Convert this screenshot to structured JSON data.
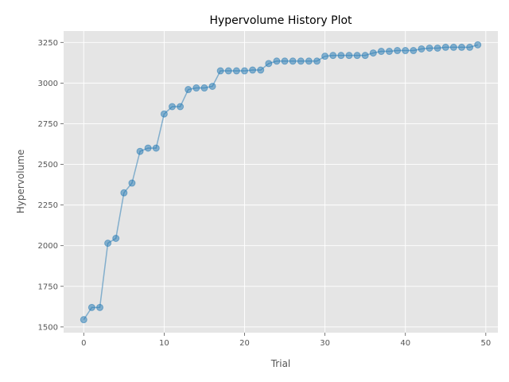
{
  "chart_data": {
    "type": "line",
    "title": "Hypervolume History Plot",
    "xlabel": "Trial",
    "ylabel": "Hypervolume",
    "xlim": [
      -2.5,
      51.5
    ],
    "ylim": [
      1465,
      3320
    ],
    "xticks": [
      0,
      10,
      20,
      30,
      40,
      50
    ],
    "yticks": [
      1500,
      1750,
      2000,
      2250,
      2500,
      2750,
      3000,
      3250
    ],
    "grid": true,
    "style": "ggplot",
    "colors": {
      "background": "#e5e5e5",
      "grid": "#ffffff",
      "line": "#1f77b4",
      "marker": "#1f77b4"
    },
    "series": [
      {
        "x": [
          0,
          1,
          2,
          3,
          4,
          5,
          6,
          7,
          8,
          9,
          10,
          11,
          12,
          13,
          14,
          15,
          16,
          17,
          18,
          19,
          20,
          21,
          22,
          23,
          24,
          25,
          26,
          27,
          28,
          29,
          30,
          31,
          32,
          33,
          34,
          35,
          36,
          37,
          38,
          39,
          40,
          41,
          42,
          43,
          44,
          45,
          46,
          47,
          48,
          49
        ],
        "values": [
          1545,
          1620,
          1620,
          2015,
          2045,
          2325,
          2385,
          2580,
          2600,
          2600,
          2810,
          2855,
          2855,
          2960,
          2970,
          2970,
          2980,
          3075,
          3075,
          3075,
          3075,
          3080,
          3080,
          3120,
          3135,
          3135,
          3135,
          3135,
          3135,
          3135,
          3165,
          3170,
          3170,
          3170,
          3170,
          3170,
          3185,
          3195,
          3195,
          3200,
          3200,
          3200,
          3210,
          3215,
          3215,
          3220,
          3220,
          3220,
          3220,
          3235
        ]
      }
    ]
  }
}
